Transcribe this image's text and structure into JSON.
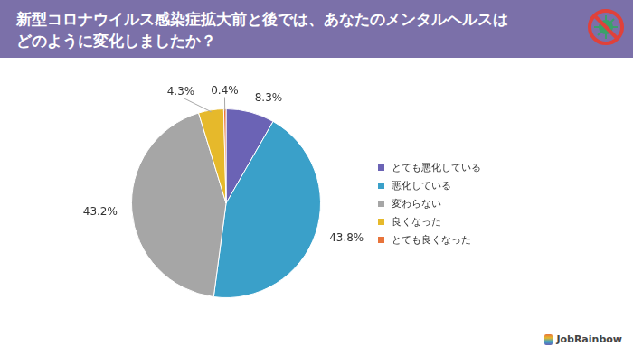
{
  "chart_data": {
    "type": "pie",
    "title": [
      "新型コロナウイルス感染症拡大前と後では、あなたのメンタルヘルスは",
      "どのように変化しましたか？"
    ],
    "categories": [
      "とても悪化している",
      "悪化している",
      "変わらない",
      "良くなった",
      "とても良くなった"
    ],
    "values": [
      8.3,
      43.8,
      43.2,
      4.3,
      0.4
    ],
    "value_labels": [
      "8.3%",
      "43.8%",
      "43.2%",
      "4.3%",
      "0.4%"
    ],
    "colors": [
      "#6b63b5",
      "#3aa0c9",
      "#a6a6a6",
      "#e6b92b",
      "#e8743b"
    ],
    "data_labels": true,
    "legend": "right",
    "source": "JobRainbow"
  }
}
